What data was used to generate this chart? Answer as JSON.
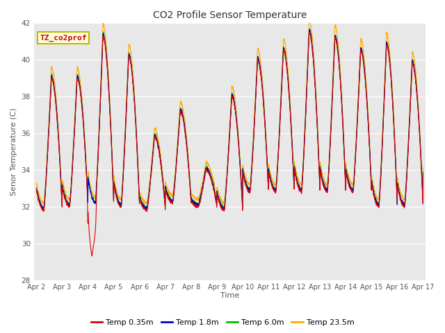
{
  "title": "CO2 Profile Sensor Temperature",
  "ylabel": "Senor Temperature (C)",
  "xlabel": "Time",
  "ylim": [
    28,
    42
  ],
  "yticks": [
    28,
    30,
    32,
    34,
    36,
    38,
    40,
    42
  ],
  "line_colors": [
    "#dd0000",
    "#0000cc",
    "#00bb00",
    "#ffaa00"
  ],
  "line_labels": [
    "Temp 0.35m",
    "Temp 1.8m",
    "Temp 6.0m",
    "Temp 23.5m"
  ],
  "line_width": 0.8,
  "plot_bg": "#e8e8e8",
  "fig_bg": "#ffffff",
  "legend_box_label": "TZ_co2prof",
  "legend_box_facecolor": "#ffffe0",
  "legend_box_edgecolor": "#bbbb00",
  "legend_text_color": "#cc0000",
  "x_tick_labels": [
    "Apr 2",
    "Apr 3",
    "Apr 4",
    "Apr 5",
    "Apr 6",
    "Apr 7",
    "Apr 8",
    "Apr 9",
    "Apr 10",
    "Apr 11",
    "Apr 12",
    "Apr 13",
    "Apr 14",
    "Apr 15",
    "Apr 16",
    "Apr 17"
  ],
  "x_tick_positions": [
    0,
    1,
    2,
    3,
    4,
    5,
    6,
    7,
    8,
    9,
    10,
    11,
    12,
    13,
    14,
    15
  ],
  "grid_color": "#ffffff",
  "daily_mins": [
    31.8,
    32.0,
    32.1,
    32.0,
    31.8,
    32.2,
    32.0,
    31.8,
    32.8,
    32.8,
    32.8,
    32.8,
    32.8,
    32.0,
    32.0,
    34.5
  ],
  "daily_maxs": [
    39.0,
    39.0,
    41.3,
    40.2,
    35.8,
    37.2,
    34.0,
    38.0,
    40.0,
    40.5,
    41.5,
    41.2,
    40.5,
    40.8,
    39.8,
    39.8
  ],
  "anomaly_low": 29.3
}
